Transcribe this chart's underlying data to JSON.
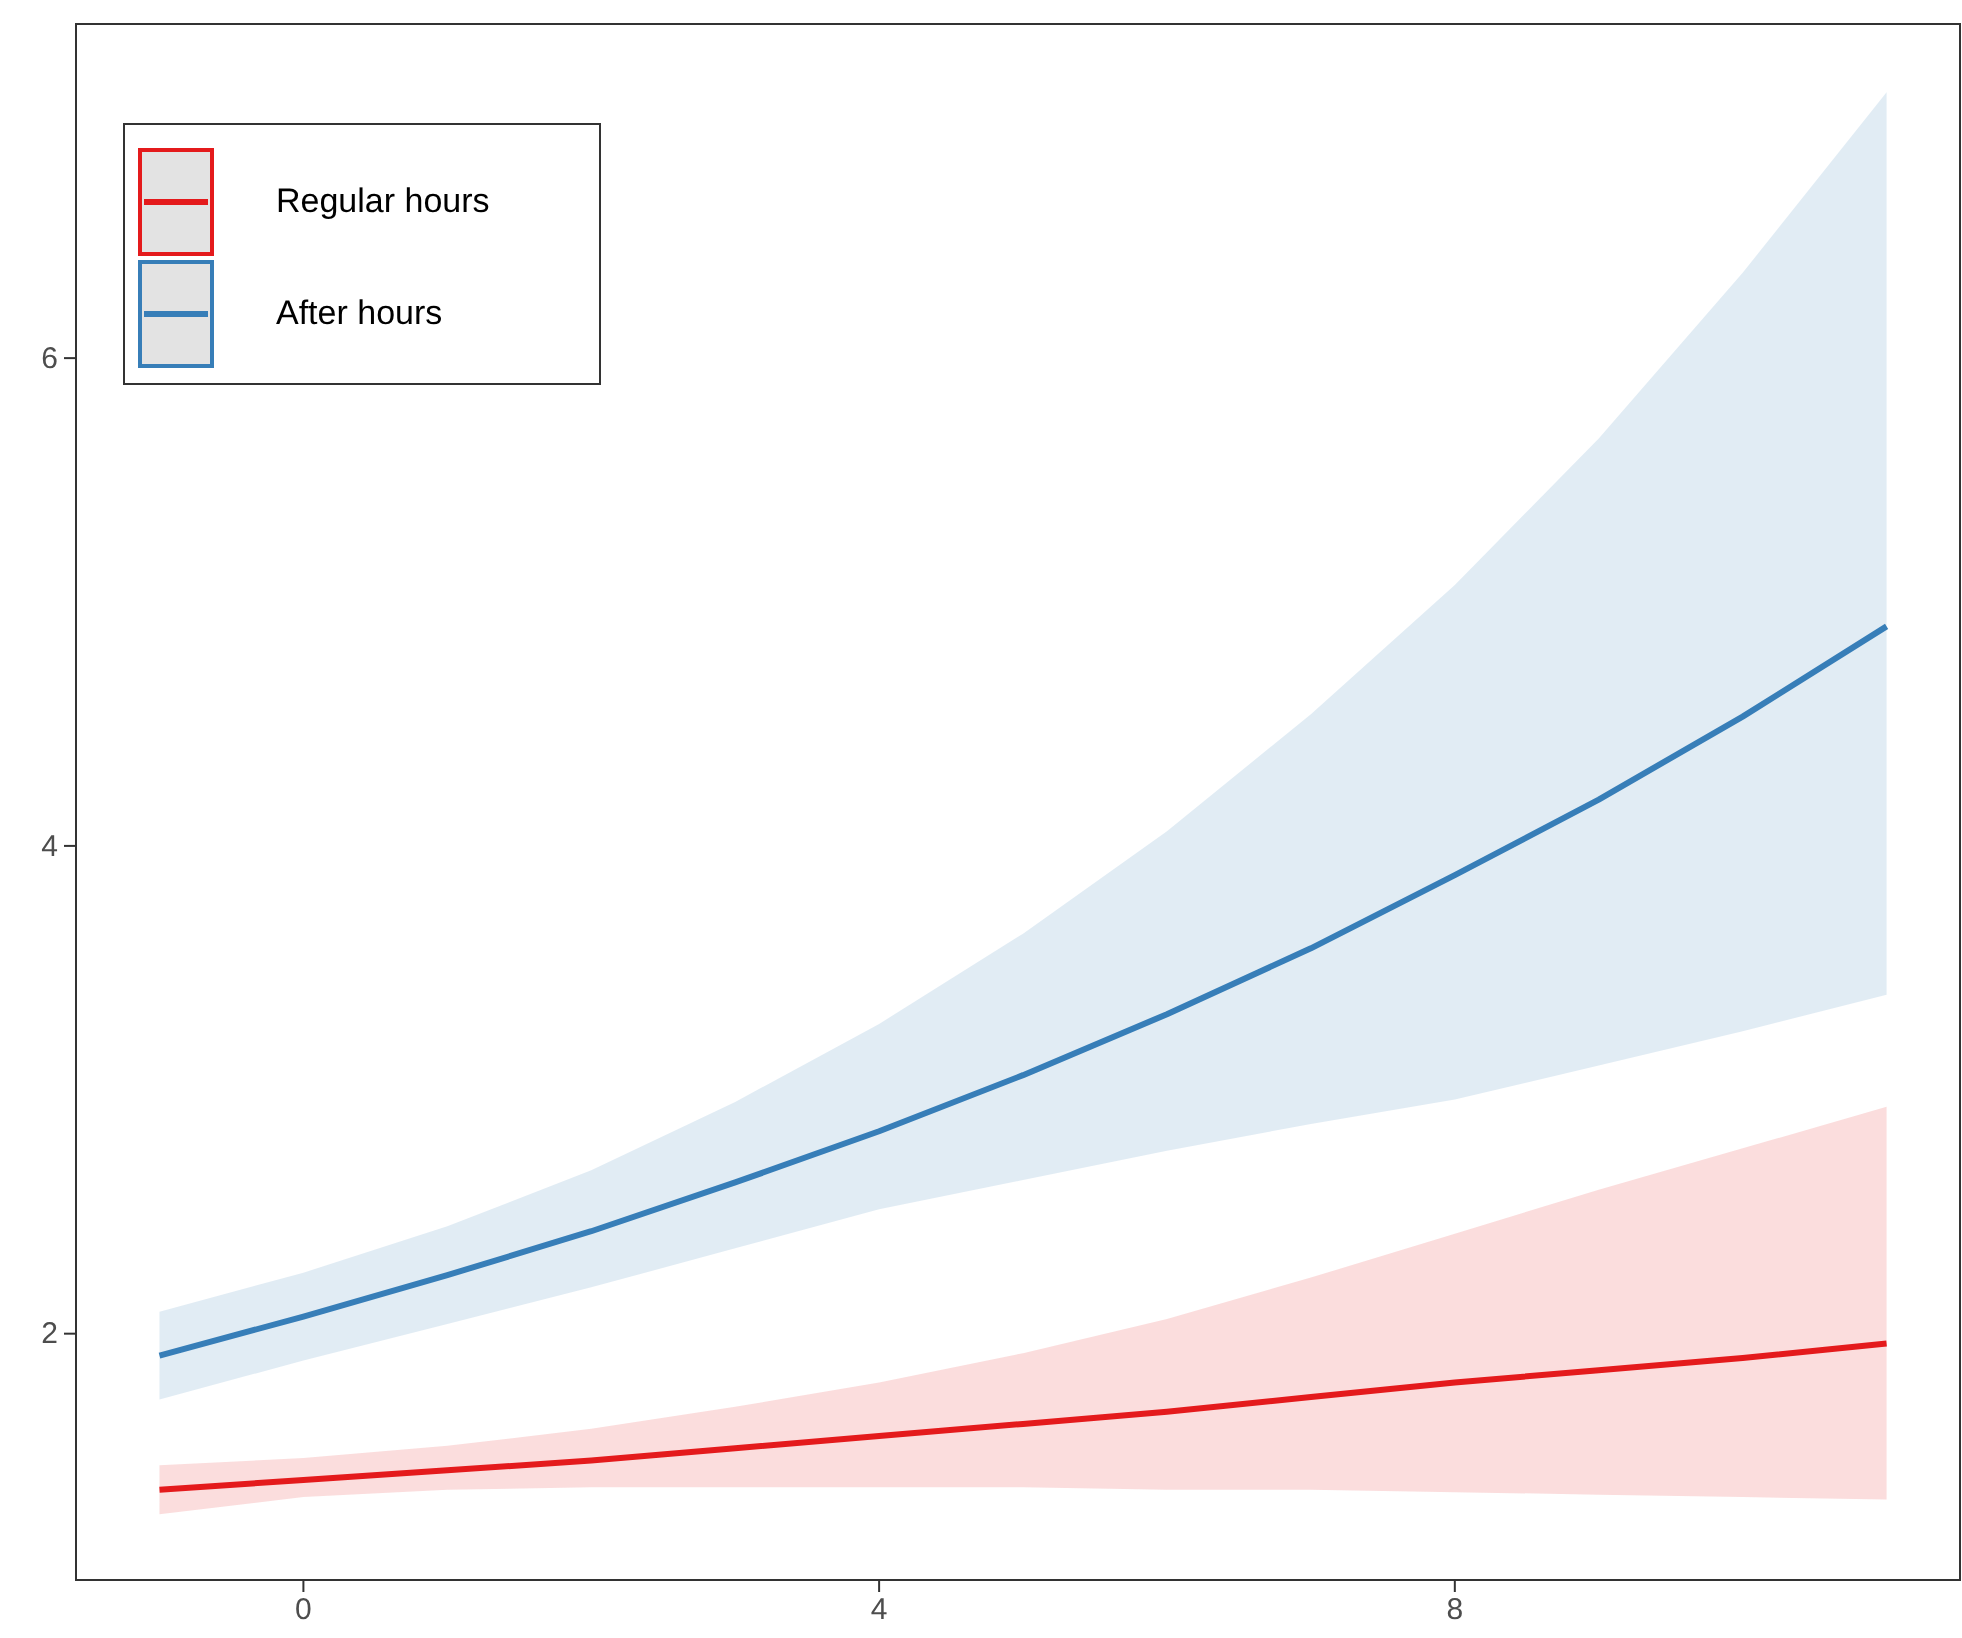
{
  "chart_data": {
    "type": "line",
    "x": [
      -1,
      0,
      1,
      2,
      3,
      4,
      5,
      6,
      7,
      8,
      9,
      10,
      11
    ],
    "xlim": [
      -1.58,
      11.51
    ],
    "ylim": [
      0.99,
      7.37
    ],
    "xticks": [
      0,
      4,
      8
    ],
    "yticks": [
      2,
      4,
      6
    ],
    "grid": false,
    "legend": "top left",
    "series": [
      {
        "name": "Regular hours",
        "color": "#e41a1c",
        "values": [
          1.36,
          1.4,
          1.44,
          1.48,
          1.53,
          1.58,
          1.63,
          1.68,
          1.74,
          1.8,
          1.85,
          1.9,
          1.96
        ],
        "lower": [
          1.26,
          1.33,
          1.36,
          1.37,
          1.37,
          1.37,
          1.37,
          1.36,
          1.36,
          1.35,
          1.34,
          1.33,
          1.32
        ],
        "upper": [
          1.46,
          1.49,
          1.54,
          1.61,
          1.7,
          1.8,
          1.92,
          2.06,
          2.23,
          2.41,
          2.59,
          2.76,
          2.93
        ]
      },
      {
        "name": "After hours",
        "color": "#377eb8",
        "values": [
          1.91,
          2.07,
          2.24,
          2.42,
          2.62,
          2.83,
          3.06,
          3.31,
          3.58,
          3.88,
          4.19,
          4.53,
          4.9
        ],
        "lower": [
          1.73,
          1.89,
          2.04,
          2.19,
          2.35,
          2.51,
          2.63,
          2.75,
          2.86,
          2.96,
          3.1,
          3.24,
          3.39
        ],
        "upper": [
          2.09,
          2.25,
          2.44,
          2.67,
          2.95,
          3.27,
          3.64,
          4.06,
          4.54,
          5.07,
          5.67,
          6.35,
          7.09
        ]
      }
    ]
  }
}
